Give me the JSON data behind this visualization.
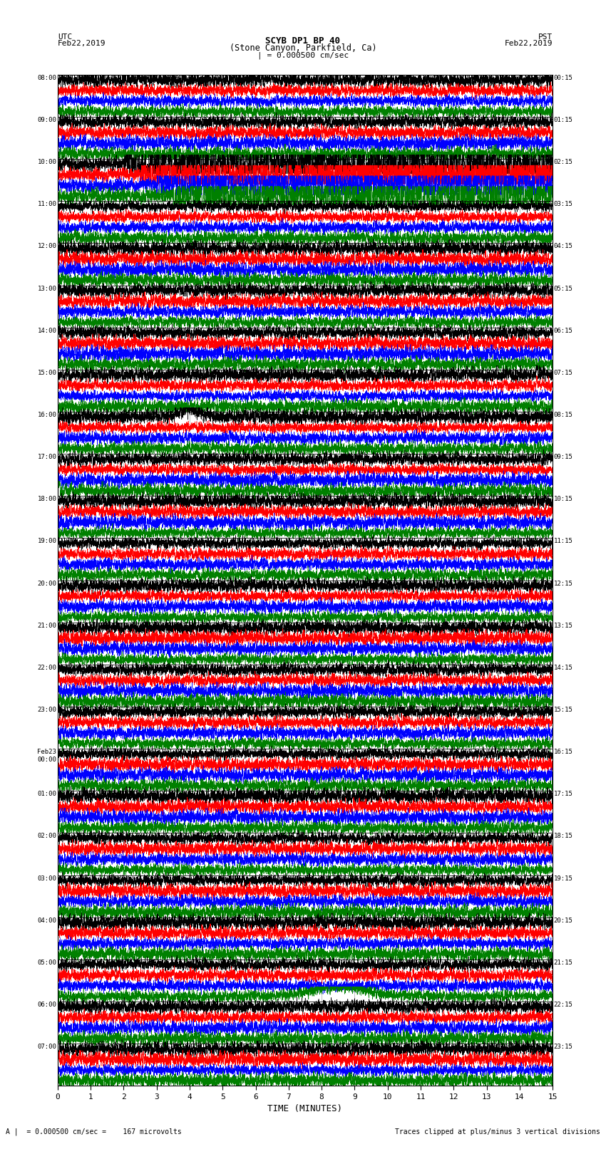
{
  "title_line1": "SCYB DP1 BP 40",
  "title_line2": "(Stone Canyon, Parkfield, Ca)",
  "scale_label": "| = 0.000500 cm/sec",
  "bottom_label1": "A |  = 0.000500 cm/sec =    167 microvolts",
  "bottom_label2": "Traces clipped at plus/minus 3 vertical divisions",
  "xlabel": "TIME (MINUTES)",
  "num_rows": 24,
  "traces_per_row": 4,
  "colors": [
    "black",
    "red",
    "blue",
    "green"
  ],
  "x_ticks": [
    0,
    1,
    2,
    3,
    4,
    5,
    6,
    7,
    8,
    9,
    10,
    11,
    12,
    13,
    14,
    15
  ],
  "xlim": [
    0,
    15
  ],
  "fig_width": 8.5,
  "fig_height": 16.13,
  "dpi": 100,
  "left_label_hours": [
    "08:00",
    "09:00",
    "10:00",
    "11:00",
    "12:00",
    "13:00",
    "14:00",
    "15:00",
    "16:00",
    "17:00",
    "18:00",
    "19:00",
    "20:00",
    "21:00",
    "22:00",
    "23:00",
    "Feb23\n00:00",
    "01:00",
    "02:00",
    "03:00",
    "04:00",
    "05:00",
    "06:00",
    "07:00"
  ],
  "right_label_hours": [
    "00:15",
    "01:15",
    "02:15",
    "03:15",
    "04:15",
    "05:15",
    "06:15",
    "07:15",
    "08:15",
    "09:15",
    "10:15",
    "11:15",
    "12:15",
    "13:15",
    "14:15",
    "15:15",
    "16:15",
    "17:15",
    "18:15",
    "19:15",
    "20:15",
    "21:15",
    "22:15",
    "23:15"
  ],
  "bg_color": "#ffffff",
  "grid_color": "#aaaaaa",
  "noise_seed": 12345
}
